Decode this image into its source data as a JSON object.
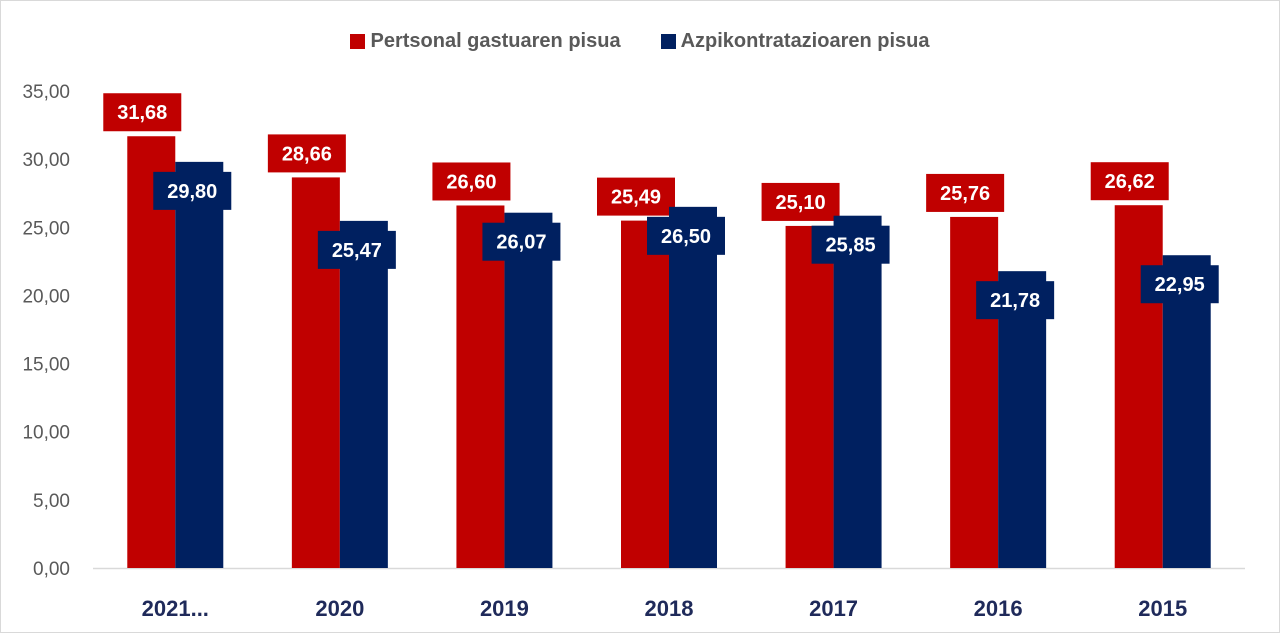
{
  "chart_data": {
    "type": "bar",
    "title": "",
    "xlabel": "",
    "ylabel": "",
    "categories": [
      "2021...",
      "2020",
      "2019",
      "2018",
      "2017",
      "2016",
      "2015"
    ],
    "series": [
      {
        "name": "Pertsonal gastuaren pisua",
        "color": "#c00000",
        "values": [
          31.68,
          28.66,
          26.6,
          25.49,
          25.1,
          25.76,
          26.62
        ],
        "labels": [
          "31,68",
          "28,66",
          "26,60",
          "25,49",
          "25,10",
          "25,76",
          "26,62"
        ]
      },
      {
        "name": "Azpikontratazioaren pisua",
        "color": "#002060",
        "values": [
          29.8,
          25.47,
          26.07,
          26.5,
          25.85,
          21.78,
          22.95
        ],
        "labels": [
          "29,80",
          "25,47",
          "26,07",
          "26,50",
          "25,85",
          "21,78",
          "22,95"
        ]
      }
    ],
    "ylim": [
      0,
      35
    ],
    "yticks": [
      "0,00",
      "5,00",
      "10,00",
      "15,00",
      "20,00",
      "25,00",
      "30,00",
      "35,00"
    ],
    "grid": false,
    "legend_position": "top-center"
  }
}
